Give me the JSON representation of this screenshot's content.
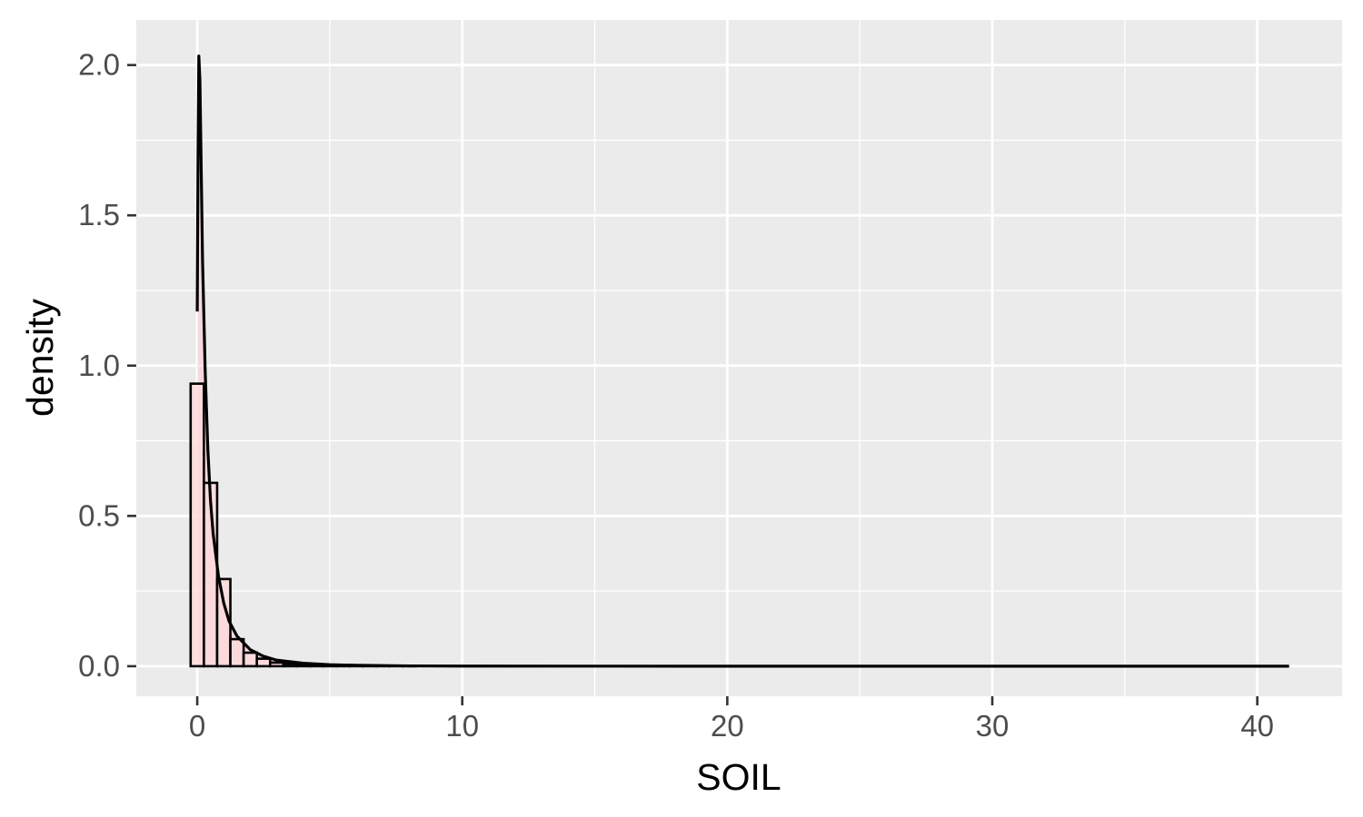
{
  "chart_data": {
    "type": "histogram",
    "xlabel": "SOIL",
    "ylabel": "density",
    "xlim": [
      -2.3,
      43.2
    ],
    "ylim": [
      -0.1,
      2.15
    ],
    "x_ticks": [
      0,
      10,
      20,
      30,
      40
    ],
    "x_tick_labels": [
      "0",
      "10",
      "20",
      "30",
      "40"
    ],
    "y_ticks": [
      0.0,
      0.5,
      1.0,
      1.5,
      2.0
    ],
    "y_tick_labels": [
      "0.0",
      "0.5",
      "1.0",
      "1.5",
      "2.0"
    ],
    "grid": true,
    "bin_width": 0.5,
    "histogram": {
      "bins": [
        {
          "x0": -0.25,
          "x1": 0.25,
          "density": 0.94
        },
        {
          "x0": 0.25,
          "x1": 0.75,
          "density": 0.61
        },
        {
          "x0": 0.75,
          "x1": 1.25,
          "density": 0.29
        },
        {
          "x0": 1.25,
          "x1": 1.75,
          "density": 0.09
        },
        {
          "x0": 1.75,
          "x1": 2.25,
          "density": 0.045
        },
        {
          "x0": 2.25,
          "x1": 2.75,
          "density": 0.025
        },
        {
          "x0": 2.75,
          "x1": 3.25,
          "density": 0.012
        },
        {
          "x0": 3.25,
          "x1": 3.75,
          "density": 0.008
        },
        {
          "x0": 3.75,
          "x1": 4.25,
          "density": 0.005
        },
        {
          "x0": 4.25,
          "x1": 4.75,
          "density": 0.003
        },
        {
          "x0": 4.75,
          "x1": 5.25,
          "density": 0.002
        },
        {
          "x0": 5.25,
          "x1": 5.75,
          "density": 0.001
        },
        {
          "x0": 5.75,
          "x1": 6.25,
          "density": 0.001
        },
        {
          "x0": 6.25,
          "x1": 6.75,
          "density": 0.0007
        },
        {
          "x0": 6.75,
          "x1": 7.25,
          "density": 0.0005
        },
        {
          "x0": 7.25,
          "x1": 7.75,
          "density": 0.0003
        },
        {
          "x0": 7.75,
          "x1": 8.25,
          "density": 0.0002
        },
        {
          "x0": 8.25,
          "x1": 41.25,
          "density": 0.0
        }
      ]
    },
    "density_curve": {
      "x": [
        0.0,
        0.03,
        0.06,
        0.1,
        0.15,
        0.2,
        0.3,
        0.4,
        0.5,
        0.6,
        0.8,
        1.0,
        1.2,
        1.5,
        2.0,
        2.5,
        3.0,
        4.0,
        5.0,
        6.0,
        8.0,
        10.0,
        15.0,
        20.0,
        30.0,
        41.2
      ],
      "y": [
        1.18,
        1.7,
        2.03,
        1.95,
        1.65,
        1.35,
        0.98,
        0.72,
        0.55,
        0.44,
        0.3,
        0.21,
        0.15,
        0.1,
        0.055,
        0.033,
        0.02,
        0.01,
        0.005,
        0.003,
        0.001,
        0.0005,
        0.0002,
        0.0001,
        0.0,
        0.0
      ]
    },
    "colors": {
      "panel_background": "#ebebeb",
      "gridline": "#ffffff",
      "bar_fill": "#ffdada",
      "bar_outline": "#000000",
      "curve_fill": "#ffc0cb",
      "curve_line": "#000000",
      "tick_label": "#4d4d4d",
      "axis_title": "#000000"
    }
  }
}
